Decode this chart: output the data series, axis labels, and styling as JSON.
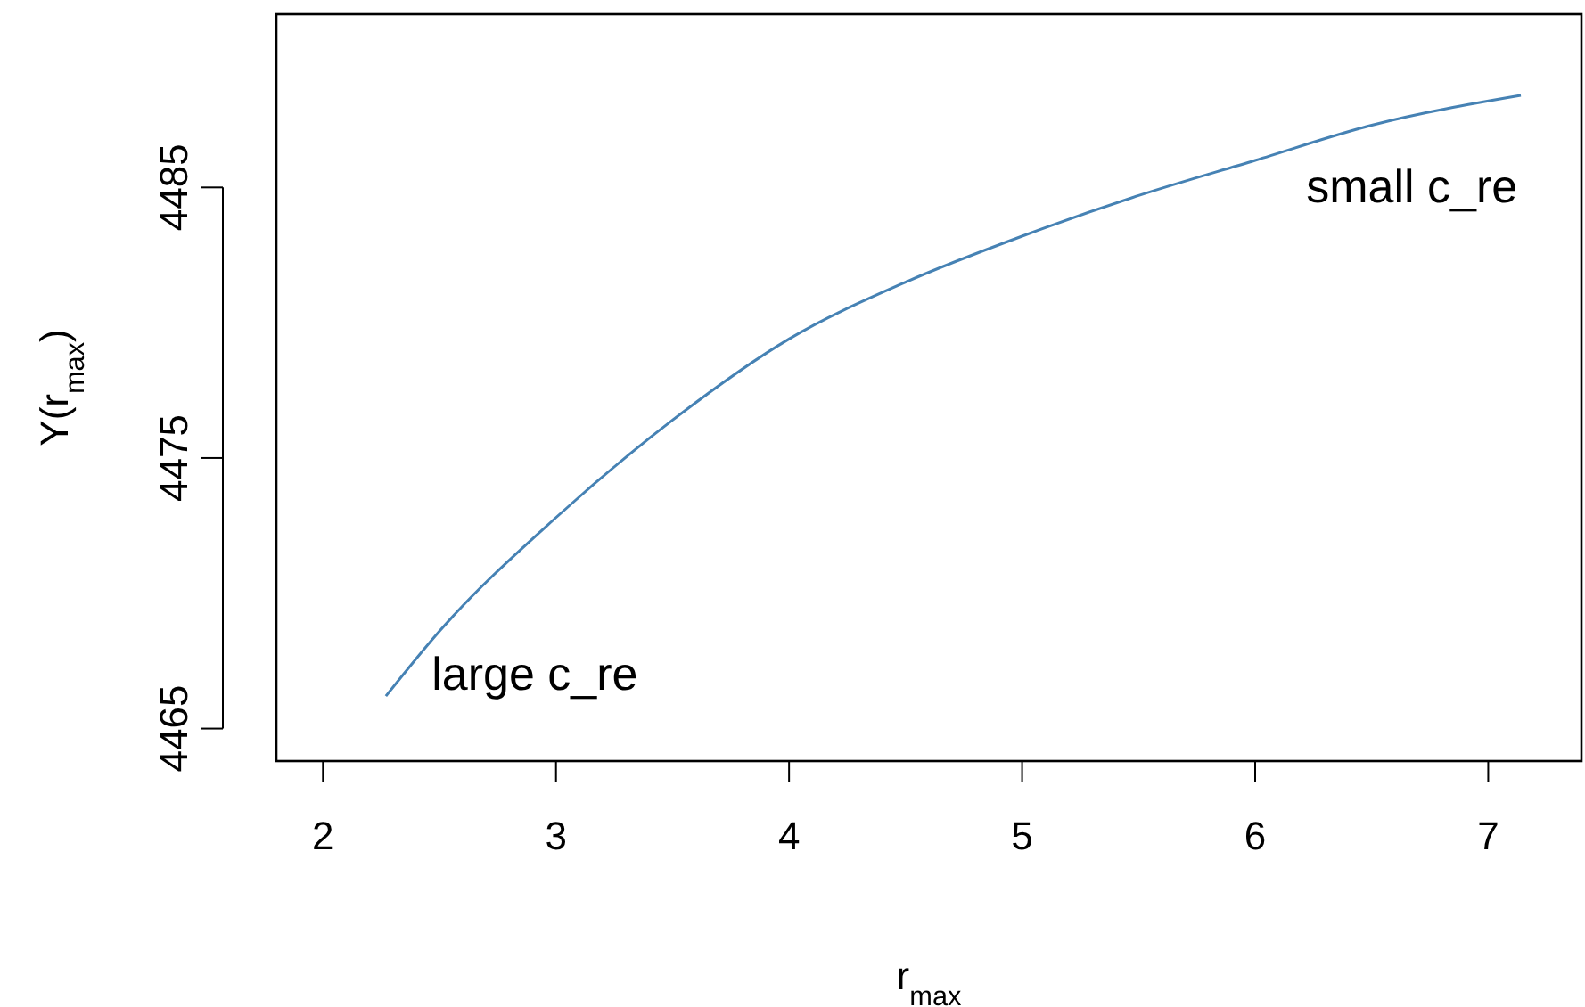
{
  "chart_data": {
    "type": "line",
    "xlabel": "r$_{max}$",
    "ylabel": "Y(r$_{max}$)",
    "xlim": [
      1.8,
      7.4
    ],
    "ylim": [
      4463.8,
      4491.4
    ],
    "xticks": [
      2,
      3,
      4,
      5,
      6,
      7
    ],
    "yticks": [
      4465,
      4475,
      4485
    ],
    "x": [
      2.27,
      2.5,
      3,
      3.5,
      4,
      4.5,
      5,
      5.5,
      6,
      6.5,
      7.14
    ],
    "series": [
      {
        "color": "#4682b4",
        "values": [
          4466.2,
          4468.6,
          4472.8,
          4476.4,
          4479.4,
          4481.5,
          4483.2,
          4484.7,
          4486.0,
          4487.3,
          4488.4
        ]
      }
    ],
    "annotations": [
      "large c_re",
      "small c_re"
    ],
    "grid": false,
    "marker": "none",
    "line_style": "solid"
  }
}
